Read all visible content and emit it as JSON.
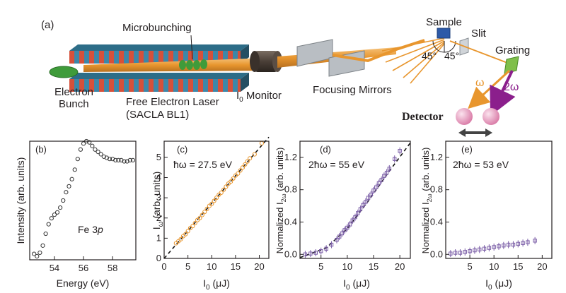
{
  "schematic": {
    "panel_label": "(a)",
    "microbunching": "Microbunching",
    "electron_bunch_line1": "Electron",
    "electron_bunch_line2": "Bunch",
    "fel_line1": "Free Electron Laser",
    "fel_line2": "(SACLA BL1)",
    "monitor_prefix": "I",
    "monitor_sub": "0",
    "monitor_suffix": " Monitor",
    "focusing_mirrors": "Focusing Mirrors",
    "sample": "Sample",
    "slit": "Slit",
    "grating": "Grating",
    "angle_left": "45°",
    "angle_right": "45°",
    "omega": "ω",
    "two_omega": "2ω",
    "detector": "Detector",
    "colors": {
      "beam": "#e8962e",
      "stripe_red": "#d6503a",
      "stripe_blue": "#3d87a8",
      "bunch": "#3f9b3a",
      "omega_arrow": "#e8962e",
      "two_omega_arrow": "#8b1f8c",
      "detector": "#e8a0c0"
    }
  },
  "chart_data": [
    {
      "panel": "(b)",
      "type": "scatter",
      "annotation_prefix": "Fe 3",
      "annotation_italic": "p",
      "xlabel": "Energy (eV)",
      "ylabel": "Intensity (arb. units)",
      "xlim": [
        52.3,
        59.6
      ],
      "ylim": [
        0,
        1
      ],
      "xticks": [
        54,
        56,
        58
      ],
      "yticks": [],
      "marker_color": "#333333",
      "x": [
        52.6,
        52.8,
        53.0,
        53.2,
        53.4,
        53.6,
        53.8,
        54.0,
        54.2,
        54.4,
        54.6,
        54.8,
        55.0,
        55.2,
        55.4,
        55.6,
        55.8,
        56.0,
        56.2,
        56.4,
        56.6,
        56.8,
        57.0,
        57.2,
        57.4,
        57.6,
        57.8,
        58.0,
        58.2,
        58.4,
        58.6,
        58.8,
        59.0,
        59.2,
        59.4
      ],
      "y": [
        0.05,
        0.03,
        0.06,
        0.12,
        0.22,
        0.3,
        0.35,
        0.38,
        0.4,
        0.44,
        0.5,
        0.57,
        0.62,
        0.68,
        0.76,
        0.85,
        0.93,
        0.98,
        1.0,
        0.99,
        0.96,
        0.93,
        0.91,
        0.89,
        0.87,
        0.86,
        0.85,
        0.85,
        0.84,
        0.84,
        0.84,
        0.83,
        0.83,
        0.84,
        0.84
      ]
    },
    {
      "panel": "(c)",
      "type": "scatter",
      "annotation": "ħω = 27.5 eV",
      "xlabel_main": "I",
      "xlabel_sub": "0",
      "xlabel_unit": " (μJ)",
      "ylabel_main": "I",
      "ylabel_sub": "ω",
      "ylabel_unit": " (arb. units)",
      "xlim": [
        0,
        22
      ],
      "ylim": [
        0,
        5.8
      ],
      "xticks": [
        0,
        5,
        10,
        15,
        20
      ],
      "yticks": [
        0,
        1,
        2,
        3,
        4,
        5
      ],
      "marker_color": "#e8962e",
      "fit_line": [
        [
          0,
          0
        ],
        [
          22,
          6.0
        ]
      ],
      "x": [
        2.5,
        3,
        3.5,
        4,
        4.5,
        5,
        5.5,
        6,
        6.5,
        7,
        7.5,
        8,
        8.5,
        9,
        9.5,
        10,
        10.5,
        11,
        11.5,
        12,
        12.5,
        13,
        13.5,
        14,
        14.5,
        15,
        15.5,
        16,
        16.5,
        17,
        17.5,
        18,
        19,
        20.5
      ],
      "y": [
        0.75,
        0.85,
        0.95,
        1.1,
        1.2,
        1.35,
        1.5,
        1.6,
        1.75,
        1.9,
        2.0,
        2.15,
        2.3,
        2.45,
        2.6,
        2.7,
        2.85,
        3.0,
        3.15,
        3.25,
        3.4,
        3.55,
        3.7,
        3.8,
        3.95,
        4.1,
        4.2,
        4.35,
        4.5,
        4.65,
        4.8,
        4.95,
        5.15,
        5.7
      ]
    },
    {
      "panel": "(d)",
      "type": "scatter",
      "annotation": "2ħω = 55 eV",
      "xlabel_main": "I",
      "xlabel_sub": "0",
      "xlabel_unit": " (μJ)",
      "ylabel_pre": "Normalized I",
      "ylabel_sub": "2ω",
      "ylabel_unit": " (arb. units)",
      "xlim": [
        1,
        22
      ],
      "ylim": [
        -0.05,
        1.4
      ],
      "xticks": [
        5,
        10,
        15,
        20
      ],
      "yticks": [
        0.0,
        0.4,
        0.8,
        1.2
      ],
      "marker_color": "#7b5ea7",
      "fit_line": [
        [
          1,
          -0.04
        ],
        [
          6,
          0.08
        ],
        [
          10,
          0.32
        ],
        [
          14,
          0.66
        ],
        [
          18,
          1.03
        ],
        [
          22,
          1.38
        ]
      ],
      "x": [
        2,
        3,
        4,
        5,
        6,
        7,
        8,
        8.5,
        9,
        9.5,
        10,
        10.5,
        11,
        11.5,
        12,
        12.5,
        13,
        13.5,
        14,
        14.5,
        15,
        15.5,
        16,
        16.5,
        17,
        17.5,
        18,
        19,
        20
      ],
      "y": [
        0.0,
        0.01,
        0.02,
        0.04,
        0.07,
        0.12,
        0.18,
        0.22,
        0.26,
        0.3,
        0.33,
        0.37,
        0.42,
        0.46,
        0.51,
        0.56,
        0.61,
        0.65,
        0.7,
        0.74,
        0.79,
        0.83,
        0.88,
        0.92,
        0.97,
        1.01,
        1.06,
        1.18,
        1.28
      ]
    },
    {
      "panel": "(e)",
      "type": "scatter",
      "annotation": "2ħω = 53 eV",
      "xlabel_main": "I",
      "xlabel_sub": "0",
      "xlabel_unit": " (μJ)",
      "ylabel_pre": "Normalized I",
      "ylabel_sub": "2ω",
      "ylabel_unit": " (arb. units)",
      "xlim": [
        0,
        22
      ],
      "ylim": [
        -0.05,
        1.4
      ],
      "xticks": [
        5,
        10,
        15,
        20
      ],
      "yticks": [
        0.0,
        0.4,
        0.8,
        1.2
      ],
      "marker_color": "#7b5ea7",
      "x": [
        1,
        2,
        3,
        4,
        5,
        6,
        7,
        8,
        9,
        10,
        11,
        12,
        13,
        14,
        15,
        16,
        17,
        18.5
      ],
      "y": [
        0.01,
        0.02,
        0.02,
        0.03,
        0.04,
        0.05,
        0.06,
        0.07,
        0.08,
        0.09,
        0.1,
        0.11,
        0.12,
        0.12,
        0.13,
        0.14,
        0.15,
        0.17
      ]
    }
  ]
}
